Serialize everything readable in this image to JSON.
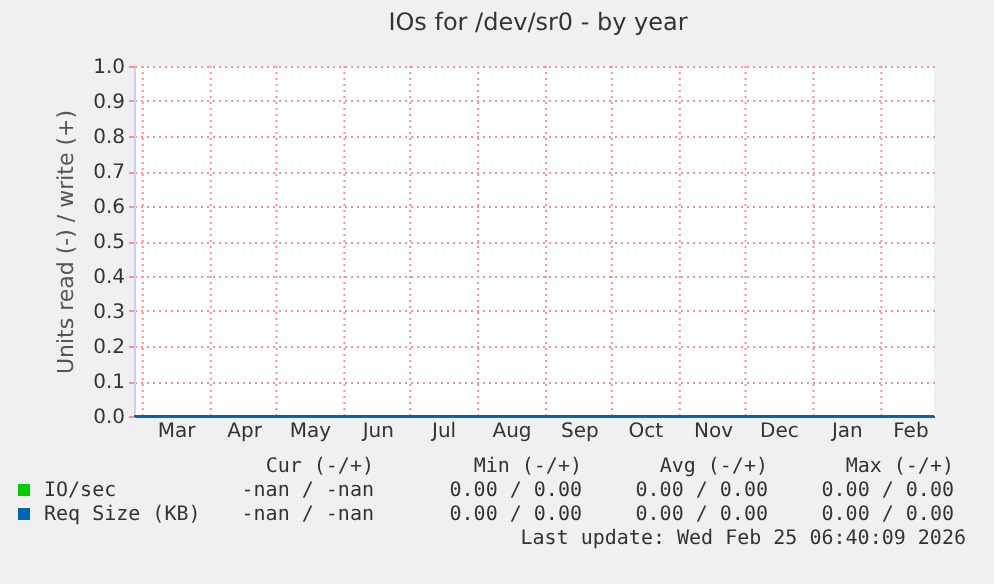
{
  "chart_data": {
    "type": "line",
    "title": "IOs for /dev/sr0 - by year",
    "ylabel": "Units read (-) / write (+)",
    "xlim": [
      "2025-02-25",
      "2026-02-25"
    ],
    "xticks": [
      {
        "value": "2025-03-01",
        "label": null
      },
      {
        "value": "2025-03-16",
        "label": "Mar"
      },
      {
        "value": "2025-04-01",
        "label": null
      },
      {
        "value": "2025-04-16",
        "label": "Apr"
      },
      {
        "value": "2025-05-01",
        "label": null
      },
      {
        "value": "2025-05-16",
        "label": "May"
      },
      {
        "value": "2025-06-01",
        "label": null
      },
      {
        "value": "2025-06-16",
        "label": "Jun"
      },
      {
        "value": "2025-07-01",
        "label": null
      },
      {
        "value": "2025-07-16",
        "label": "Jul"
      },
      {
        "value": "2025-08-01",
        "label": null
      },
      {
        "value": "2025-08-16",
        "label": "Aug"
      },
      {
        "value": "2025-09-01",
        "label": null
      },
      {
        "value": "2025-09-16",
        "label": "Sep"
      },
      {
        "value": "2025-10-01",
        "label": null
      },
      {
        "value": "2025-10-16",
        "label": "Oct"
      },
      {
        "value": "2025-11-01",
        "label": null
      },
      {
        "value": "2025-11-16",
        "label": "Nov"
      },
      {
        "value": "2025-12-01",
        "label": null
      },
      {
        "value": "2025-12-16",
        "label": "Dec"
      },
      {
        "value": "2026-01-01",
        "label": null
      },
      {
        "value": "2026-01-16",
        "label": "Jan"
      },
      {
        "value": "2026-02-01",
        "label": null
      },
      {
        "value": "2026-02-14",
        "label": "Feb"
      }
    ],
    "ylim": [
      0,
      1
    ],
    "yticks": [
      {
        "value": 0,
        "label": "0.0"
      },
      0.1,
      0.2,
      0.3,
      0.4,
      0.5,
      0.6,
      0.7,
      0.8,
      0.9,
      {
        "value": 1,
        "label": "1.0"
      }
    ],
    "grid": true,
    "legend": "bottom left",
    "marker": "none",
    "line_style": "solid",
    "series": [
      {
        "name": "IO/sec",
        "color": "#00cc00"
      },
      {
        "name": "Req Size (KB)",
        "color": "#0066b3",
        "x": [
          "2025-02-25",
          "2026-02-25"
        ],
        "values": [
          0,
          0
        ]
      }
    ],
    "annotations": [
      "Cur (-/+)",
      "Min (-/+)",
      "Avg (-/+)",
      "Max (-/+)",
      "-nan / -nan",
      "0.00 / 0.00",
      "0.00 / 0.00",
      "0.00 / 0.00",
      "-nan / -nan",
      "0.00 / 0.00",
      "0.00 / 0.00",
      "0.00 / 0.00",
      "Last update: Wed Feb 25 06:40:09 2026"
    ]
  }
}
